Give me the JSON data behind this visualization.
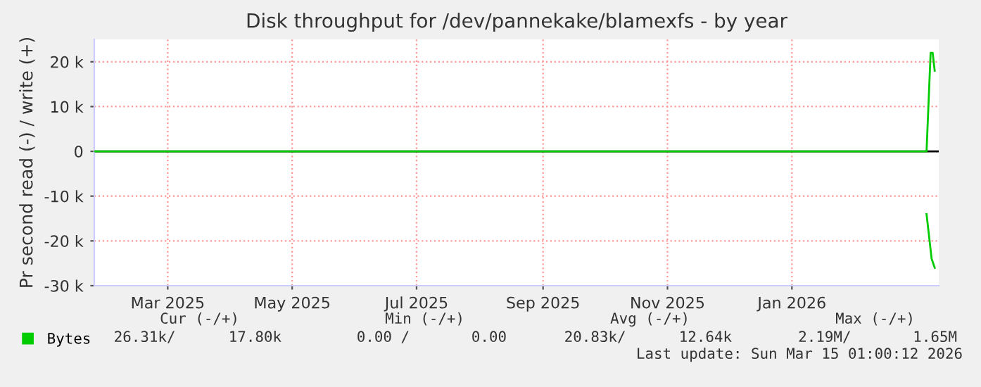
{
  "chart_data": {
    "type": "line",
    "title": "Disk throughput for /dev/pannekake/blamexfs - by year",
    "ylabel": "Pr second read (-) / write (+)",
    "xlim": [
      "2025-02-08",
      "2026-03-29"
    ],
    "xticks": [
      {
        "value": "2025-03-16",
        "label": "Mar 2025"
      },
      {
        "value": "2025-05-16",
        "label": "May 2025"
      },
      {
        "value": "2025-07-16",
        "label": "Jul 2025"
      },
      {
        "value": "2025-09-16",
        "label": "Sep 2025"
      },
      {
        "value": "2025-11-16",
        "label": "Nov 2025"
      },
      {
        "value": "2026-01-16",
        "label": "Jan 2026"
      }
    ],
    "ylim": [
      -30000,
      25000
    ],
    "yticks": [
      {
        "value": -30000,
        "label": "-30 k"
      },
      {
        "value": -20000,
        "label": "-20 k"
      },
      {
        "value": -10000,
        "label": "-10 k"
      },
      0,
      {
        "value": 10000,
        "label": "10 k"
      },
      {
        "value": 20000,
        "label": "20 k"
      }
    ],
    "grid": true,
    "legend": "bottom left",
    "marker": "none",
    "line_style": "solid",
    "ref_lines": [
      {
        "axis": "y",
        "value": 0,
        "color": "#000000"
      }
    ],
    "series": [
      {
        "name": "Bytes",
        "color": "#00cc00",
        "x": [
          "2025-02-08",
          "2026-03-23",
          "2026-03-25",
          "2026-03-26",
          "2026-03-27"
        ],
        "values": [
          0,
          0,
          22000,
          22000,
          18000
        ]
      },
      {
        "color": "#00cc00",
        "x": [
          "2026-03-23",
          "2026-03-25T12:00",
          "2026-03-27"
        ],
        "values": [
          -14000,
          -24000,
          -26000
        ]
      }
    ],
    "annotations": [
      "Cur (-/+)",
      "Min (-/+)",
      "Avg (-/+)",
      "Max (-/+)",
      "26.31k/      17.80k",
      "0.00 /       0.00",
      "20.83k/      12.64k",
      "2.19M/       1.65M",
      "Last update: Sun Mar 15 01:00:12 2026"
    ]
  }
}
